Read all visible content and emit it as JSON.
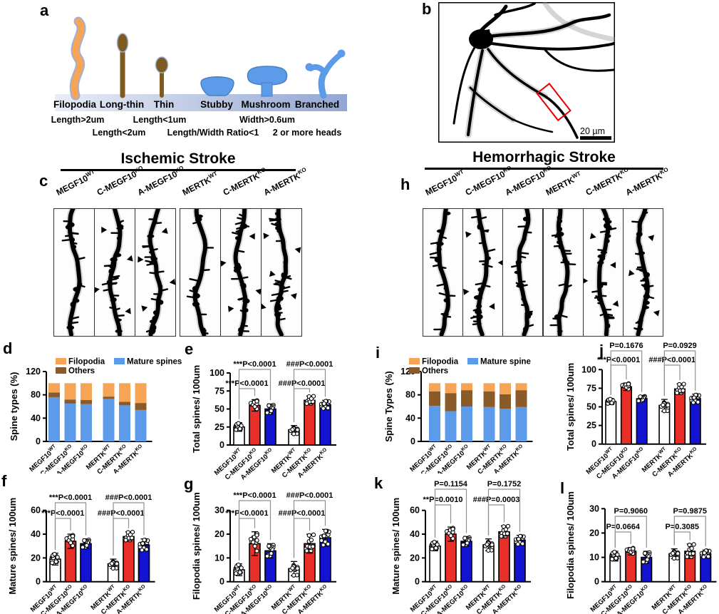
{
  "panel_a": {
    "letter": "a",
    "types": [
      {
        "label": "Filopodia",
        "color": "#f6a455"
      },
      {
        "label": "Long-thin",
        "color": "#7e5a20"
      },
      {
        "label": "Thin",
        "color": "#7e5a20"
      },
      {
        "label": "Stubby",
        "color": "#5b9bea"
      },
      {
        "label": "Mushroom",
        "color": "#5b9bea"
      },
      {
        "label": "Branched",
        "color": "#5b9bea"
      }
    ],
    "criteria_row1": [
      "Length>2um",
      "Length<1um",
      "Width>0.6um"
    ],
    "criteria_row2": [
      "Length<2um",
      "Length/Width Ratio<1",
      "2 or more heads"
    ]
  },
  "panel_b": {
    "letter": "b",
    "scale_bar": "20 µm"
  },
  "panel_c": {
    "letter": "c",
    "title": "Ischemic Stroke",
    "columns": [
      {
        "base": "MEGF10",
        "sup": "WT"
      },
      {
        "base": "C-MEGF10",
        "sup": "KO"
      },
      {
        "base": "A-MEGF10",
        "sup": "KO"
      },
      {
        "base": "MERTK",
        "sup": "WT"
      },
      {
        "base": "C-MERTK",
        "sup": "KO"
      },
      {
        "base": "A-MERTK",
        "sup": "KO"
      }
    ],
    "arrowheads_per_image": [
      0,
      4,
      4,
      0,
      4,
      5
    ]
  },
  "panel_h": {
    "letter": "h",
    "title": "Hemorrhagic Stroke",
    "columns": [
      {
        "base": "MEGF10",
        "sup": "WT"
      },
      {
        "base": "C-MEGF10",
        "sup": "KO"
      },
      {
        "base": "A-MEGF10",
        "sup": "KO"
      },
      {
        "base": "MERTK",
        "sup": "WT"
      },
      {
        "base": "C-MERTK",
        "sup": "KO"
      },
      {
        "base": "A-MERTK",
        "sup": "KO"
      }
    ],
    "arrowheads_per_image": [
      0,
      4,
      0,
      0,
      4,
      3
    ]
  },
  "colors": {
    "filopodia_orange": "#f6a455",
    "others_brown": "#8a5a28",
    "mature_blue": "#5b9bea",
    "bar_white": "#ffffff",
    "bar_red": "#e92f28",
    "bar_blue": "#1313d2"
  },
  "chart_data": [
    {
      "id": "d",
      "letter": "d",
      "type": "stacked-bar",
      "ylabel": "Spine types (%)",
      "ylim": [
        0,
        120
      ],
      "yticks": [
        0,
        40,
        80,
        120
      ],
      "categories": [
        {
          "base": "MEGF10",
          "sup": "WT"
        },
        {
          "base": "C-MEGF10",
          "sup": "KO"
        },
        {
          "base": "A-MEGF10",
          "sup": "KO"
        },
        {
          "base": "MERTK",
          "sup": "WT"
        },
        {
          "base": "C-MERTK",
          "sup": "KO"
        },
        {
          "base": "A-MERTK",
          "sup": "KO"
        }
      ],
      "series": [
        {
          "name": "Mature spines",
          "color": "#5b9bea",
          "values": [
            76,
            65,
            64,
            73,
            62,
            54
          ]
        },
        {
          "name": "Others",
          "color": "#8a5a28",
          "values": [
            8,
            7,
            7,
            4,
            6,
            12
          ]
        },
        {
          "name": "Filopodia",
          "color": "#f6a455",
          "values": [
            16,
            28,
            29,
            23,
            32,
            34
          ]
        }
      ]
    },
    {
      "id": "e",
      "letter": "e",
      "type": "bar",
      "ylabel": "Total spines/ 100um",
      "ylim": [
        0,
        100
      ],
      "yticks": [
        0,
        25,
        50,
        75,
        100
      ],
      "categories": [
        {
          "base": "MEGF10",
          "sup": "WT"
        },
        {
          "base": "C-MEGF10",
          "sup": "KO"
        },
        {
          "base": "A-MEGF10",
          "sup": "KO"
        },
        {
          "base": "MERTK",
          "sup": "WT"
        },
        {
          "base": "C-MERTK",
          "sup": "KO"
        },
        {
          "base": "A-MERTK",
          "sup": "KO"
        }
      ],
      "values": [
        25,
        55,
        50,
        21,
        62,
        56
      ],
      "errors": [
        6,
        8,
        7,
        6,
        6,
        6
      ],
      "bar_colors": [
        "#ffffff",
        "#e92f28",
        "#1313d2",
        "#ffffff",
        "#e92f28",
        "#1313d2"
      ],
      "points_per_bar": 12,
      "annotations": [
        {
          "text": "***P<0.0001",
          "from": 0,
          "to": 1,
          "row": 1
        },
        {
          "text": "***P<0.0001",
          "from": 0,
          "to": 2,
          "row": 2
        },
        {
          "text": "###P<0.0001",
          "from": 3,
          "to": 4,
          "row": 1
        },
        {
          "text": "###P<0.0001",
          "from": 3,
          "to": 5,
          "row": 2
        }
      ]
    },
    {
      "id": "f",
      "letter": "f",
      "type": "bar",
      "ylabel": "Mature spines/ 100um",
      "ylim": [
        0,
        60
      ],
      "yticks": [
        0,
        20,
        40,
        60
      ],
      "categories": [
        {
          "base": "MEGF10",
          "sup": "WT"
        },
        {
          "base": "C-MEGF10",
          "sup": "KO"
        },
        {
          "base": "A-MEGF10",
          "sup": "KO"
        },
        {
          "base": "MERTK",
          "sup": "WT"
        },
        {
          "base": "C-MERTK",
          "sup": "KO"
        },
        {
          "base": "A-MERTK",
          "sup": "KO"
        }
      ],
      "values": [
        19,
        34,
        32,
        15,
        38,
        31
      ],
      "errors": [
        5,
        6,
        4,
        4,
        4,
        5
      ],
      "bar_colors": [
        "#ffffff",
        "#e92f28",
        "#1313d2",
        "#ffffff",
        "#e92f28",
        "#1313d2"
      ],
      "points_per_bar": 12,
      "annotations": [
        {
          "text": "***P<0.0001",
          "from": 0,
          "to": 1,
          "row": 1
        },
        {
          "text": "***P<0.0001",
          "from": 0,
          "to": 2,
          "row": 2
        },
        {
          "text": "###P<0.0001",
          "from": 3,
          "to": 4,
          "row": 1
        },
        {
          "text": "###P<0.0001",
          "from": 3,
          "to": 5,
          "row": 2
        }
      ]
    },
    {
      "id": "g",
      "letter": "g",
      "type": "bar",
      "ylabel": "Filopodia spines/ 100um",
      "ylim": [
        0,
        30
      ],
      "yticks": [
        0,
        10,
        20,
        30
      ],
      "categories": [
        {
          "base": "MEGF10",
          "sup": "WT"
        },
        {
          "base": "C-MEGF10",
          "sup": "KO"
        },
        {
          "base": "A-MEGF10",
          "sup": "KO"
        },
        {
          "base": "MERTK",
          "sup": "WT"
        },
        {
          "base": "C-MERTK",
          "sup": "KO"
        },
        {
          "base": "A-MERTK",
          "sup": "KO"
        }
      ],
      "values": [
        5,
        16,
        13,
        5.5,
        16,
        18.5
      ],
      "errors": [
        2.5,
        5,
        3,
        3,
        4,
        3.5
      ],
      "bar_colors": [
        "#ffffff",
        "#e92f28",
        "#1313d2",
        "#ffffff",
        "#e92f28",
        "#1313d2"
      ],
      "points_per_bar": 12,
      "annotations": [
        {
          "text": "***P<0.0001",
          "from": 0,
          "to": 1,
          "row": 1
        },
        {
          "text": "***P<0.0001",
          "from": 0,
          "to": 2,
          "row": 2
        },
        {
          "text": "###P<0.0001",
          "from": 3,
          "to": 4,
          "row": 1
        },
        {
          "text": "###P<0.0001",
          "from": 3,
          "to": 5,
          "row": 2
        }
      ]
    },
    {
      "id": "i",
      "letter": "i",
      "type": "stacked-bar",
      "ylabel": "Spine Types (%)",
      "ylim": [
        0,
        120
      ],
      "yticks": [
        0,
        40,
        80,
        120
      ],
      "categories": [
        {
          "base": "MEGF10",
          "sup": "WT"
        },
        {
          "base": "C-MEGF10",
          "sup": "KO"
        },
        {
          "base": "A-MEGF10",
          "sup": "KO"
        },
        {
          "base": "MERTK",
          "sup": "WT"
        },
        {
          "base": "C-MERTK",
          "sup": "KO"
        },
        {
          "base": "A-MERTK",
          "sup": "KO"
        }
      ],
      "series": [
        {
          "name": "Mature spine",
          "color": "#5b9bea",
          "values": [
            61,
            52,
            60,
            59,
            56,
            59
          ]
        },
        {
          "name": "Others",
          "color": "#8a5a28",
          "values": [
            25,
            31,
            28,
            27,
            25,
            29
          ]
        },
        {
          "name": "Filopodia",
          "color": "#f6a455",
          "values": [
            14,
            17,
            12,
            14,
            19,
            12
          ]
        }
      ]
    },
    {
      "id": "j",
      "letter": "j",
      "type": "bar",
      "ylabel": "Total spines/ 100um",
      "ylim": [
        0,
        100
      ],
      "yticks": [
        0,
        25,
        50,
        75,
        100
      ],
      "categories": [
        {
          "base": "MEGF10",
          "sup": "WT"
        },
        {
          "base": "C-MEGF10",
          "sup": "KO"
        },
        {
          "base": "A-MEGF10",
          "sup": "KO"
        },
        {
          "base": "MERTK",
          "sup": "WT"
        },
        {
          "base": "C-MERTK",
          "sup": "KO"
        },
        {
          "base": "A-MERTK",
          "sup": "KO"
        }
      ],
      "values": [
        57,
        77,
        61,
        52,
        74,
        61
      ],
      "errors": [
        4,
        5,
        4,
        8,
        7,
        6
      ],
      "bar_colors": [
        "#ffffff",
        "#e92f28",
        "#1313d2",
        "#ffffff",
        "#e92f28",
        "#1313d2"
      ],
      "points_per_bar": 12,
      "annotations": [
        {
          "text": "***P<0.0001",
          "from": 0,
          "to": 1,
          "row": 1
        },
        {
          "text": "P=0.1676",
          "from": 0,
          "to": 2,
          "row": 2
        },
        {
          "text": "###P<0.0001",
          "from": 3,
          "to": 4,
          "row": 1
        },
        {
          "text": "P=0.0929",
          "from": 3,
          "to": 5,
          "row": 2
        }
      ]
    },
    {
      "id": "k",
      "letter": "k",
      "type": "bar",
      "ylabel": "Mature spines/ 100um",
      "ylim": [
        0,
        60
      ],
      "yticks": [
        0,
        20,
        40,
        60
      ],
      "categories": [
        {
          "base": "MEGF10",
          "sup": "WT"
        },
        {
          "base": "C-MEGF10",
          "sup": "KO"
        },
        {
          "base": "A-MEGF10",
          "sup": "KO"
        },
        {
          "base": "MERTK",
          "sup": "WT"
        },
        {
          "base": "C-MERTK",
          "sup": "KO"
        },
        {
          "base": "A-MERTK",
          "sup": "KO"
        }
      ],
      "values": [
        30,
        40,
        34,
        31,
        42,
        35
      ],
      "errors": [
        4,
        6,
        4,
        5,
        5,
        4
      ],
      "bar_colors": [
        "#ffffff",
        "#e92f28",
        "#1313d2",
        "#ffffff",
        "#e92f28",
        "#1313d2"
      ],
      "points_per_bar": 12,
      "annotations": [
        {
          "text": "**P=0.0010",
          "from": 0,
          "to": 1,
          "row": 1
        },
        {
          "text": "P=0.1154",
          "from": 0,
          "to": 2,
          "row": 2
        },
        {
          "text": "###P=0.0003",
          "from": 3,
          "to": 4,
          "row": 1
        },
        {
          "text": "P=0.1752",
          "from": 3,
          "to": 5,
          "row": 2
        }
      ]
    },
    {
      "id": "l",
      "letter": "l",
      "type": "bar",
      "ylabel": "Filopodia spines/ 100um",
      "ylim": [
        0,
        30
      ],
      "yticks": [
        0,
        10,
        20,
        30
      ],
      "categories": [
        {
          "base": "MEGF10",
          "sup": "WT"
        },
        {
          "base": "C-MEGF10",
          "sup": "KO"
        },
        {
          "base": "A-MEGF10",
          "sup": "KO"
        },
        {
          "base": "MERTK",
          "sup": "WT"
        },
        {
          "base": "C-MERTK",
          "sup": "KO"
        },
        {
          "base": "A-MERTK",
          "sup": "KO"
        }
      ],
      "values": [
        10.5,
        12.5,
        10,
        11.5,
        12.5,
        11.5
      ],
      "errors": [
        2,
        1.5,
        2.5,
        2,
        3,
        1.5
      ],
      "bar_colors": [
        "#ffffff",
        "#e92f28",
        "#1313d2",
        "#ffffff",
        "#e92f28",
        "#1313d2"
      ],
      "points_per_bar": 12,
      "annotations": [
        {
          "text": "P=0.0664",
          "from": 0,
          "to": 1,
          "row": 1
        },
        {
          "text": "P=0.9060",
          "from": 0,
          "to": 2,
          "row": 2
        },
        {
          "text": "P=0.3085",
          "from": 3,
          "to": 4,
          "row": 1
        },
        {
          "text": "P=0.9875",
          "from": 3,
          "to": 5,
          "row": 2
        }
      ]
    }
  ]
}
